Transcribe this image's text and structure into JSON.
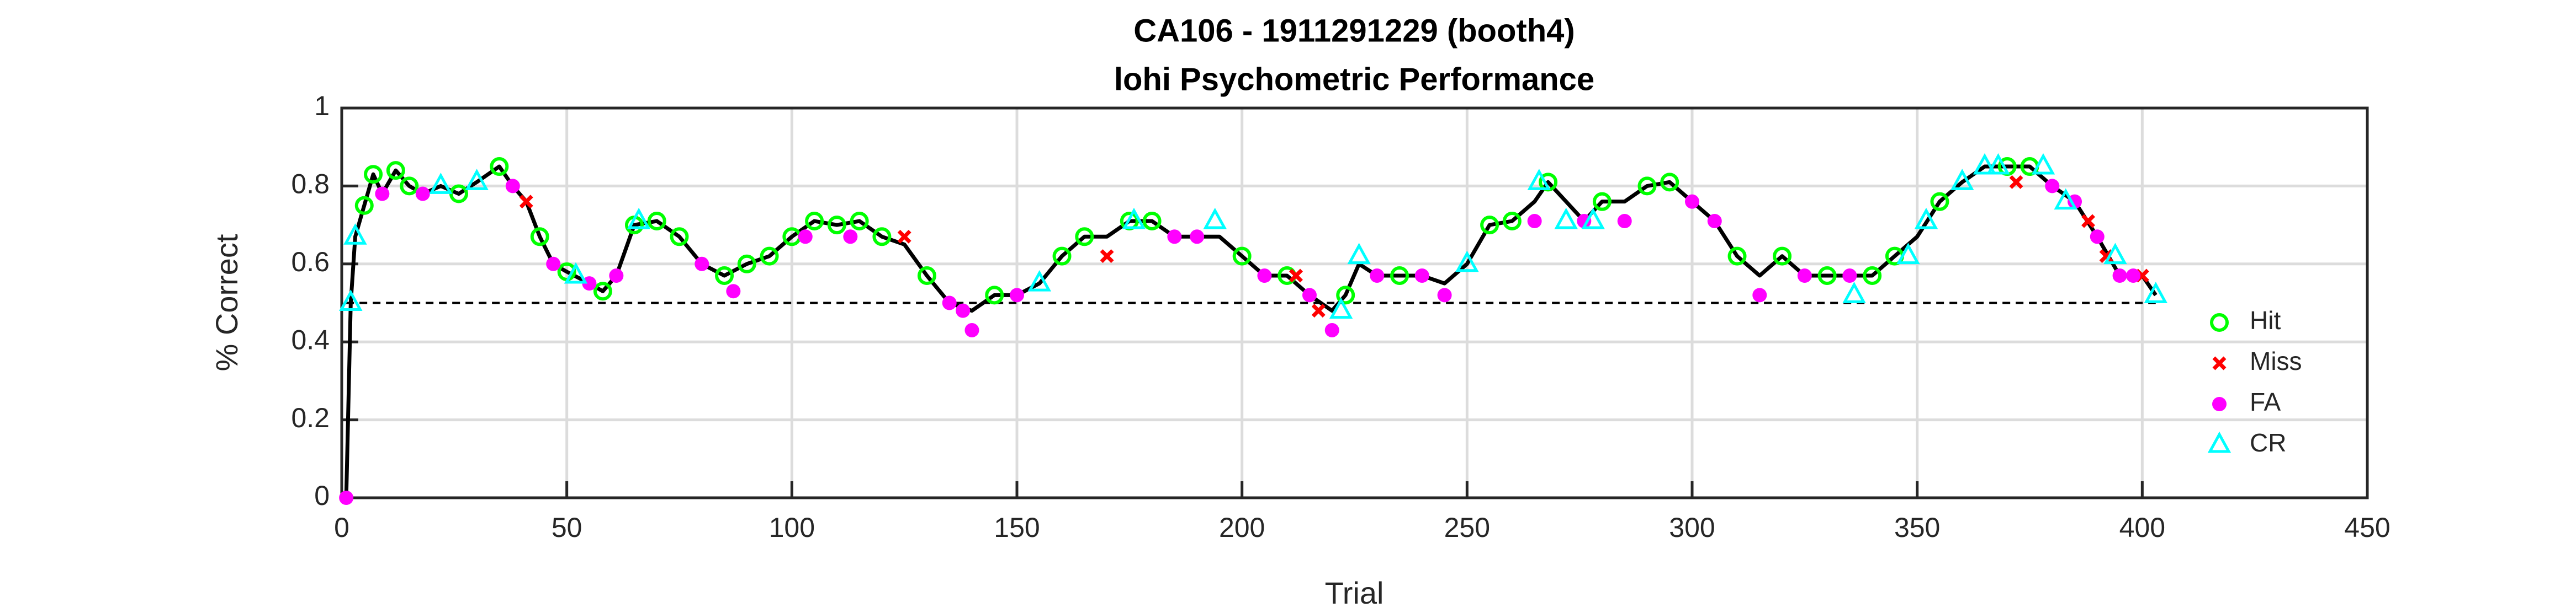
{
  "chart_data": {
    "type": "line",
    "title": "CA106 - 1911291229 (booth4)",
    "subtitle": "lohi Psychometric Performance",
    "x_label": "Trial",
    "y_label": "% Correct",
    "xlim": [
      0,
      450
    ],
    "ylim": [
      0,
      1
    ],
    "xticks": [
      0,
      50,
      100,
      150,
      200,
      250,
      300,
      350,
      400,
      450
    ],
    "yticks": [
      0,
      0.2,
      0.4,
      0.6,
      0.8,
      1
    ],
    "grid": true,
    "legend": "east",
    "reference_line": 0.5,
    "line": {
      "color": "#000000",
      "x": [
        1,
        2,
        3,
        5,
        7,
        9,
        12,
        15,
        18,
        22,
        26,
        30,
        35,
        38,
        41,
        44,
        47,
        50,
        55,
        58,
        61,
        65,
        70,
        75,
        80,
        85,
        90,
        95,
        100,
        105,
        110,
        115,
        120,
        125,
        130,
        135,
        140,
        145,
        150,
        155,
        160,
        165,
        170,
        175,
        180,
        185,
        190,
        195,
        200,
        205,
        210,
        215,
        220,
        223,
        226,
        230,
        235,
        240,
        245,
        250,
        255,
        260,
        265,
        268,
        272,
        276,
        280,
        285,
        290,
        295,
        300,
        305,
        310,
        315,
        320,
        325,
        330,
        335,
        340,
        345,
        350,
        355,
        360,
        365,
        370,
        375,
        380,
        385,
        390,
        395,
        400,
        403
      ],
      "values": [
        0,
        0.5,
        0.67,
        0.75,
        0.83,
        0.78,
        0.84,
        0.8,
        0.78,
        0.8,
        0.78,
        0.81,
        0.85,
        0.8,
        0.76,
        0.67,
        0.6,
        0.58,
        0.55,
        0.53,
        0.57,
        0.7,
        0.71,
        0.67,
        0.6,
        0.57,
        0.6,
        0.62,
        0.67,
        0.71,
        0.7,
        0.71,
        0.67,
        0.65,
        0.57,
        0.5,
        0.48,
        0.52,
        0.52,
        0.55,
        0.62,
        0.67,
        0.67,
        0.71,
        0.71,
        0.67,
        0.67,
        0.67,
        0.62,
        0.57,
        0.57,
        0.52,
        0.48,
        0.52,
        0.6,
        0.57,
        0.57,
        0.57,
        0.55,
        0.6,
        0.7,
        0.71,
        0.76,
        0.81,
        0.76,
        0.71,
        0.76,
        0.76,
        0.8,
        0.81,
        0.76,
        0.71,
        0.62,
        0.57,
        0.62,
        0.57,
        0.57,
        0.57,
        0.57,
        0.62,
        0.67,
        0.76,
        0.81,
        0.85,
        0.85,
        0.85,
        0.8,
        0.76,
        0.67,
        0.57,
        0.57,
        0.52
      ]
    },
    "series": [
      {
        "name": "Hit",
        "color": "#00ff00",
        "marker": "circle",
        "x": [
          5,
          7,
          12,
          15,
          26,
          35,
          44,
          50,
          58,
          65,
          70,
          75,
          85,
          90,
          95,
          100,
          105,
          110,
          115,
          120,
          130,
          145,
          160,
          165,
          175,
          180,
          200,
          210,
          223,
          235,
          255,
          260,
          268,
          280,
          290,
          295,
          310,
          320,
          330,
          340,
          345,
          355,
          370,
          375
        ],
        "values": [
          0.75,
          0.83,
          0.84,
          0.8,
          0.78,
          0.85,
          0.67,
          0.58,
          0.53,
          0.7,
          0.71,
          0.67,
          0.57,
          0.6,
          0.62,
          0.67,
          0.71,
          0.7,
          0.71,
          0.67,
          0.57,
          0.52,
          0.62,
          0.67,
          0.71,
          0.71,
          0.62,
          0.57,
          0.52,
          0.57,
          0.7,
          0.71,
          0.81,
          0.76,
          0.8,
          0.81,
          0.62,
          0.62,
          0.57,
          0.57,
          0.62,
          0.76,
          0.85,
          0.85
        ]
      },
      {
        "name": "Miss",
        "color": "#ff0000",
        "marker": "x",
        "x": [
          41,
          125,
          170,
          212,
          217,
          372,
          388,
          392,
          400
        ],
        "values": [
          0.76,
          0.67,
          0.62,
          0.57,
          0.48,
          0.81,
          0.71,
          0.62,
          0.57
        ]
      },
      {
        "name": "FA",
        "color": "#ff00ff",
        "marker": "dot",
        "x": [
          1,
          9,
          18,
          38,
          47,
          55,
          61,
          80,
          87,
          103,
          113,
          135,
          138,
          140,
          150,
          185,
          190,
          205,
          215,
          220,
          230,
          240,
          245,
          265,
          276,
          285,
          300,
          305,
          315,
          325,
          335,
          380,
          385,
          390,
          395,
          398
        ],
        "values": [
          0,
          0.78,
          0.78,
          0.8,
          0.6,
          0.55,
          0.57,
          0.6,
          0.53,
          0.67,
          0.67,
          0.5,
          0.48,
          0.43,
          0.52,
          0.67,
          0.67,
          0.57,
          0.52,
          0.43,
          0.57,
          0.57,
          0.52,
          0.71,
          0.71,
          0.71,
          0.76,
          0.71,
          0.52,
          0.57,
          0.57,
          0.8,
          0.76,
          0.67,
          0.57,
          0.57
        ]
      },
      {
        "name": "CR",
        "color": "#00ffff",
        "marker": "triangle",
        "x": [
          2,
          3,
          22,
          30,
          52,
          66,
          155,
          176,
          194,
          222,
          226,
          250,
          266,
          272,
          278,
          336,
          348,
          352,
          360,
          365,
          368,
          378,
          383,
          394,
          403
        ],
        "values": [
          0.5,
          0.67,
          0.8,
          0.81,
          0.57,
          0.71,
          0.55,
          0.71,
          0.71,
          0.48,
          0.62,
          0.6,
          0.81,
          0.71,
          0.71,
          0.52,
          0.62,
          0.71,
          0.81,
          0.85,
          0.85,
          0.85,
          0.76,
          0.62,
          0.52
        ]
      }
    ]
  }
}
